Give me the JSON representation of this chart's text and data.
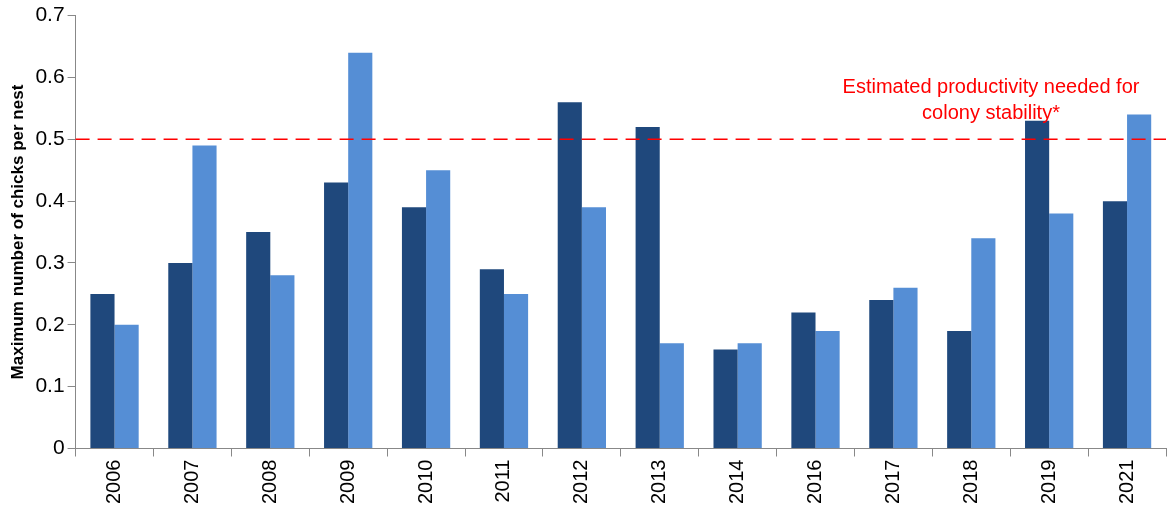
{
  "chart_data": {
    "type": "bar",
    "ylabel": "Maximum number of chicks per nest",
    "categories": [
      "2006",
      "2007",
      "2008",
      "2009",
      "2010",
      "2011",
      "2012",
      "2013",
      "2014",
      "2016",
      "2017",
      "2018",
      "2019",
      "2021"
    ],
    "series": [
      {
        "color": "#1f487c",
        "values": [
          0.25,
          0.3,
          0.35,
          0.43,
          0.39,
          0.29,
          0.56,
          0.52,
          0.16,
          0.22,
          0.24,
          0.19,
          0.53,
          0.4
        ]
      },
      {
        "color": "#558ed5",
        "values": [
          0.2,
          0.49,
          0.28,
          0.64,
          0.45,
          0.25,
          0.39,
          0.17,
          0.17,
          0.19,
          0.26,
          0.34,
          0.38,
          0.54
        ]
      }
    ],
    "ylim": [
      0,
      0.7
    ],
    "yticks": [
      0,
      0.1,
      0.2,
      0.3,
      0.4,
      0.5,
      0.6,
      0.7
    ],
    "grid": false,
    "legend": false,
    "ref_lines": [
      {
        "axis": "y",
        "value": 0.5,
        "label": "Estimated productivity needed for colony stability*",
        "color": "#ff0000",
        "line_style": "dashed"
      }
    ]
  }
}
